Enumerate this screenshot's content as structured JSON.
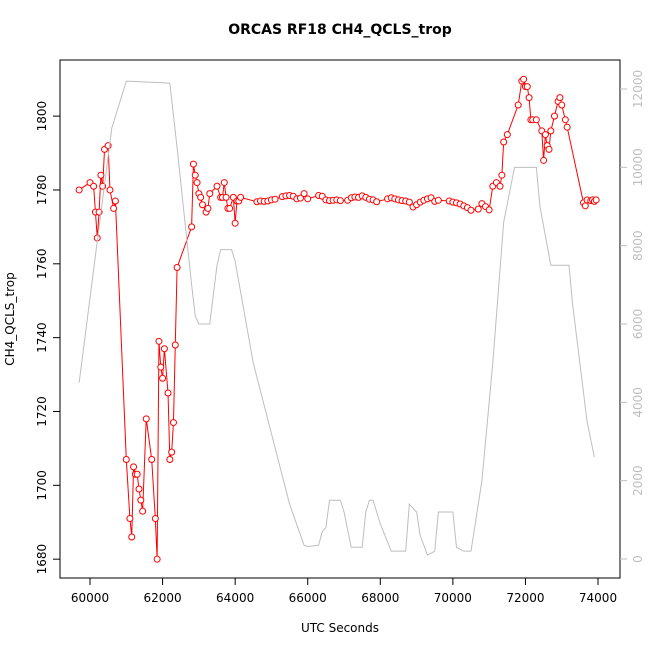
{
  "chart_data": {
    "type": "line",
    "title": "ORCAS RF18 CH4_QCLS_trop",
    "xlabel": "UTC Seconds",
    "ylabel": "CH4_QCLS_trop",
    "xlim": [
      59173,
      74606
    ],
    "xticks": [
      60000,
      62000,
      64000,
      66000,
      68000,
      70000,
      72000,
      74000
    ],
    "ylim": [
      1674.9,
      1815.2
    ],
    "yticks": [
      1680,
      1700,
      1720,
      1740,
      1760,
      1780,
      1800
    ],
    "y2lim": [
      -485,
      12740
    ],
    "y2ticks": [
      0,
      2000,
      4000,
      6000,
      8000,
      10000,
      12000
    ],
    "series": [
      {
        "color": "#ff0000",
        "markers": true,
        "x": [
          59700,
          60000,
          60100,
          60150,
          60200,
          60250,
          60300,
          60350,
          60400,
          60500,
          60550,
          60650,
          60700,
          61000,
          61100,
          61150,
          61200,
          61250,
          61300,
          61350,
          61400,
          61450,
          61550,
          61700,
          61800,
          61850,
          61900,
          61950,
          62000,
          62050,
          62150,
          62200,
          62250,
          62300,
          62350,
          62400,
          62800,
          62850,
          62900,
          62950,
          63000,
          63050,
          63100,
          63200,
          63250,
          63300,
          63500,
          63600,
          63650,
          63700,
          63750,
          63800,
          63850,
          63950,
          64000,
          64050,
          64100,
          64150,
          64600,
          64700,
          64800,
          64900,
          65000,
          65100,
          65300,
          65400,
          65500,
          65600,
          65700,
          65800,
          65900,
          66000,
          66300,
          66400,
          66500,
          66600,
          66700,
          66800,
          66900,
          67100,
          67200,
          67300,
          67400,
          67500,
          67600,
          67700,
          67800,
          67900,
          68200,
          68300,
          68400,
          68500,
          68600,
          68700,
          68800,
          68900,
          69000,
          69100,
          69200,
          69300,
          69400,
          69500,
          69600,
          69900,
          70000,
          70100,
          70200,
          70300,
          70400,
          70500,
          70700,
          70800,
          70900,
          71000,
          71100,
          71200,
          71300,
          71350,
          71400,
          71500,
          71800,
          71900,
          71950,
          72000,
          72050,
          72100,
          72150,
          72200,
          72300,
          72450,
          72500,
          72550,
          72600,
          72650,
          72700,
          72800,
          72900,
          72950,
          73000,
          73100,
          73150,
          73600,
          73650,
          73700,
          73800,
          73850,
          73900,
          73950
        ],
        "values": [
          1780,
          1782,
          1781,
          1774,
          1767,
          1774,
          1784,
          1781,
          1791,
          1792,
          1780,
          1775,
          1777,
          1707,
          1691,
          1686,
          1705,
          1703,
          1703,
          1699,
          1696,
          1693,
          1718,
          1707,
          1691,
          1680,
          1739,
          1732,
          1729,
          1737,
          1725,
          1707,
          1709,
          1717,
          1738,
          1759,
          1770,
          1787,
          1784,
          1782,
          1779,
          1778,
          1776,
          1774,
          1775,
          1779,
          1781,
          1778,
          1778,
          1782,
          1778,
          1775,
          1775,
          1778,
          1771,
          1777,
          1777,
          1778,
          1776.8,
          1777,
          1776.9,
          1777,
          1777.3,
          1777.5,
          1778.2,
          1778.4,
          1778.5,
          1778.3,
          1777.6,
          1777.8,
          1779,
          1777.6,
          1778.5,
          1778.3,
          1777.3,
          1777.1,
          1777.2,
          1777.3,
          1777.1,
          1777.2,
          1777.9,
          1778.1,
          1778,
          1778.4,
          1778,
          1777.5,
          1777.3,
          1776.8,
          1777.6,
          1777.9,
          1777.6,
          1777.3,
          1777.1,
          1777,
          1776.7,
          1775.4,
          1776,
          1776.7,
          1777.2,
          1777.6,
          1777.9,
          1776.9,
          1777.2,
          1777,
          1776.7,
          1776.5,
          1776.2,
          1775.7,
          1775.2,
          1774.5,
          1774.8,
          1776.3,
          1775.5,
          1774.6,
          1781,
          1782,
          1781,
          1784,
          1793,
          1795,
          1803,
          1809.5,
          1810,
          1808,
          1808,
          1805,
          1799,
          1799,
          1799,
          1796,
          1788,
          1795,
          1792,
          1791,
          1796,
          1800,
          1804,
          1805,
          1803,
          1799,
          1797,
          1776.5,
          1775.7,
          1777.3,
          1777.1,
          1777.3,
          1776.9,
          1777.3
        ]
      },
      {
        "color": "#bebebe",
        "axis": "y2",
        "x": [
          59700,
          60600,
          61000,
          62200,
          62400,
          62800,
          62900,
          63000,
          63300,
          63500,
          63600,
          63900,
          64000,
          64500,
          65000,
          65500,
          65900,
          66000,
          66300,
          66400,
          66500,
          66600,
          66900,
          67000,
          67200,
          67500,
          67600,
          67700,
          67800,
          68000,
          68300,
          68700,
          68800,
          69000,
          69100,
          69300,
          69500,
          69600,
          70000,
          70100,
          70300,
          70500,
          70800,
          71100,
          71400,
          71700,
          72300,
          72400,
          72700,
          73200,
          73300,
          73700,
          73900
        ],
        "values": [
          4500,
          11000,
          12200,
          12150,
          10500,
          7000,
          6200,
          6000,
          6000,
          7500,
          7900,
          7900,
          7600,
          5000,
          3200,
          1400,
          350,
          320,
          350,
          700,
          800,
          1500,
          1500,
          1200,
          300,
          300,
          1200,
          1500,
          1500,
          900,
          200,
          200,
          1400,
          1200,
          600,
          100,
          200,
          1200,
          1200,
          300,
          200,
          200,
          2000,
          5000,
          8600,
          10000,
          10000,
          9000,
          7500,
          7500,
          6500,
          3500,
          2600
        ]
      }
    ]
  }
}
